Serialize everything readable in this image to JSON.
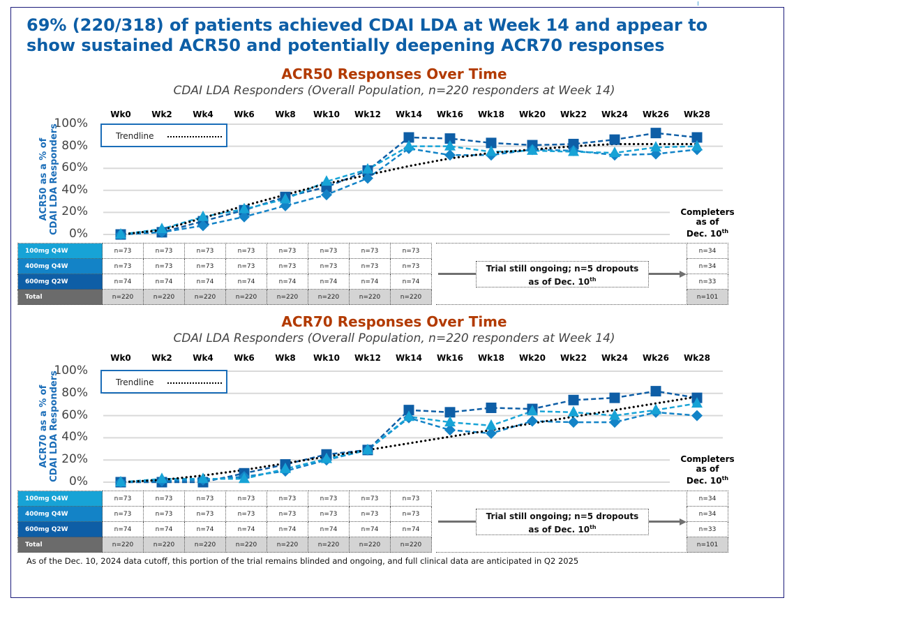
{
  "headline": "69% (220/318) of patients achieved CDAI LDA at Week 14 and appear to show sustained ACR50 and potentially deepening ACR70 responses",
  "footnote": "As of the Dec. 10, 2024 data cutoff, this portion of the trial remains blinded and ongoing, and full clinical data are anticipated in Q2 2025",
  "colors": {
    "headline": "#0d5ea6",
    "chart_title": "#b23a00",
    "dose_100mg": "#17a3d6",
    "dose_400mg": "#1383c7",
    "dose_600mg": "#0e5ea6",
    "trendline": "#000000",
    "total": "#6b6b6b"
  },
  "legend": {
    "trendline_label": "Trendline"
  },
  "completers_label": {
    "line1": "Completers",
    "line2": "as of",
    "line3": "Dec. 10",
    "sup": "th"
  },
  "ongoing_note": {
    "line1": "Trial still ongoing; n=5 dropouts",
    "line2": "as of Dec. 10",
    "sup": "th"
  },
  "n_table": {
    "groups": [
      {
        "label": "100mg Q4W",
        "counts": [
          "n=73",
          "n=73",
          "n=73",
          "n=73",
          "n=73",
          "n=73",
          "n=73",
          "n=73"
        ],
        "completers": "n=34"
      },
      {
        "label": "400mg Q4W",
        "counts": [
          "n=73",
          "n=73",
          "n=73",
          "n=73",
          "n=73",
          "n=73",
          "n=73",
          "n=73"
        ],
        "completers": "n=34"
      },
      {
        "label": "600mg Q2W",
        "counts": [
          "n=74",
          "n=74",
          "n=74",
          "n=74",
          "n=74",
          "n=74",
          "n=74",
          "n=74"
        ],
        "completers": "n=33"
      },
      {
        "label": "Total",
        "counts": [
          "n=220",
          "n=220",
          "n=220",
          "n=220",
          "n=220",
          "n=220",
          "n=220",
          "n=220"
        ],
        "completers": "n=101"
      }
    ]
  },
  "chart_data": [
    {
      "type": "line",
      "title": "ACR50 Responses Over Time",
      "subtitle": "CDAI LDA Responders (Overall Population, n=220 responders at Week 14)",
      "ylabel": "ACR50 as a % of CDAI LDA Responders",
      "ylabel_line1": "ACR50 as a % of",
      "ylabel_line2": "CDAI LDA Responders",
      "xlabel": "",
      "x": [
        "Wk0",
        "Wk2",
        "Wk4",
        "Wk6",
        "Wk8",
        "Wk10",
        "Wk12",
        "Wk14",
        "Wk16",
        "Wk18",
        "Wk20",
        "Wk22",
        "Wk24",
        "Wk26",
        "Wk28"
      ],
      "yticks": [
        "0%",
        "20%",
        "40%",
        "60%",
        "80%",
        "100%"
      ],
      "ylim": [
        0,
        100
      ],
      "grid": true,
      "legend_position": "top-left",
      "series": [
        {
          "name": "600mg Q2W",
          "marker": "square",
          "color": "#0e5ea6",
          "values": [
            0,
            2,
            12,
            22,
            34,
            43,
            58,
            88,
            87,
            83,
            81,
            82,
            86,
            92,
            88
          ]
        },
        {
          "name": "400mg Q4W",
          "marker": "diamond",
          "color": "#1383c7",
          "values": [
            0,
            2,
            8,
            16,
            26,
            36,
            51,
            78,
            72,
            72,
            77,
            76,
            72,
            73,
            77
          ]
        },
        {
          "name": "100mg Q4W",
          "marker": "triangle",
          "color": "#17a3d6",
          "values": [
            0,
            5,
            16,
            23,
            32,
            48,
            59,
            80,
            80,
            75,
            76,
            75,
            74,
            79,
            80
          ]
        },
        {
          "name": "Trendline",
          "marker": "none",
          "color": "#000000",
          "values": [
            0,
            4,
            15,
            26,
            36,
            46,
            54,
            62,
            69,
            74,
            77,
            80,
            82,
            82,
            82
          ]
        }
      ]
    },
    {
      "type": "line",
      "title": "ACR70 Responses Over Time",
      "subtitle": "CDAI LDA Responders (Overall Population, n=220 responders at Week 14)",
      "ylabel": "ACR70 as a % of CDAI LDA Responders",
      "ylabel_line1": "ACR70 as a % of",
      "ylabel_line2": "CDAI LDA Responders",
      "xlabel": "",
      "x": [
        "Wk0",
        "Wk2",
        "Wk4",
        "Wk6",
        "Wk8",
        "Wk10",
        "Wk12",
        "Wk14",
        "Wk16",
        "Wk18",
        "Wk20",
        "Wk22",
        "Wk24",
        "Wk26",
        "Wk28"
      ],
      "yticks": [
        "0%",
        "20%",
        "40%",
        "60%",
        "80%",
        "100%"
      ],
      "ylim": [
        0,
        100
      ],
      "grid": true,
      "legend_position": "top-left",
      "series": [
        {
          "name": "600mg Q2W",
          "marker": "square",
          "color": "#0e5ea6",
          "values": [
            0,
            0,
            0,
            8,
            16,
            25,
            29,
            65,
            63,
            67,
            66,
            74,
            76,
            82,
            76
          ]
        },
        {
          "name": "400mg Q4W",
          "marker": "diamond",
          "color": "#1383c7",
          "values": [
            0,
            1,
            2,
            5,
            10,
            20,
            29,
            58,
            47,
            44,
            55,
            54,
            54,
            63,
            60
          ]
        },
        {
          "name": "100mg Q4W",
          "marker": "triangle",
          "color": "#17a3d6",
          "values": [
            0,
            3,
            3,
            3,
            12,
            21,
            29,
            59,
            54,
            51,
            64,
            63,
            60,
            65,
            71
          ]
        },
        {
          "name": "Trendline",
          "marker": "none",
          "color": "#000000",
          "values": [
            0,
            2,
            6,
            11,
            17,
            23,
            29,
            35,
            41,
            47,
            53,
            59,
            65,
            71,
            77
          ]
        }
      ]
    }
  ]
}
